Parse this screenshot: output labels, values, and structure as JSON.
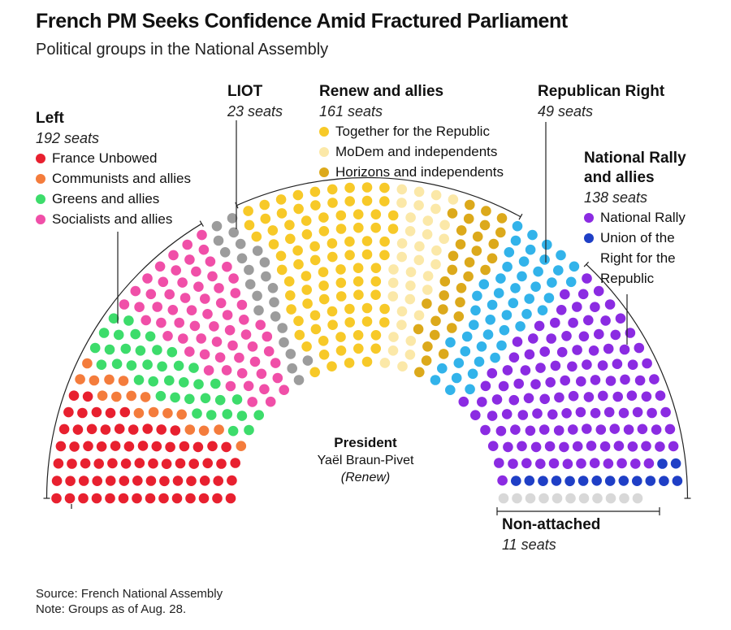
{
  "header": {
    "title": "French PM Seeks Confidence Amid Fractured Parliament",
    "subtitle": "Political groups in the National Assembly"
  },
  "chart_data": {
    "type": "parliament",
    "total_seats": 577,
    "blocs": [
      {
        "name": "Left",
        "seats_label": "192 seats",
        "seats": 192,
        "groups": [
          {
            "name": "France Unbowed",
            "seats": 71,
            "color": "#e8202f"
          },
          {
            "name": "Communists and allies",
            "seats": 17,
            "color": "#f47c3c"
          },
          {
            "name": "Greens and allies",
            "seats": 38,
            "color": "#3ddc6b"
          },
          {
            "name": "Socialists and allies",
            "seats": 66,
            "color": "#f04fa8"
          }
        ]
      },
      {
        "name": "LIOT",
        "seats_label": "23 seats",
        "seats": 23,
        "groups": [
          {
            "name": "LIOT",
            "seats": 23,
            "color": "#9c9c9c"
          }
        ]
      },
      {
        "name": "Renew and allies",
        "seats_label": "161 seats",
        "seats": 161,
        "groups": [
          {
            "name": "Together for the Republic",
            "seats": 92,
            "color": "#f7c928"
          },
          {
            "name": "MoDem and independents",
            "seats": 36,
            "color": "#fbe8a8"
          },
          {
            "name": "Horizons and independents",
            "seats": 33,
            "color": "#dca91b"
          }
        ]
      },
      {
        "name": "Republican Right",
        "seats_label": "49 seats",
        "seats": 49,
        "groups": [
          {
            "name": "Republican Right",
            "seats": 49,
            "color": "#32b3ea"
          }
        ]
      },
      {
        "name": "National Rally and allies",
        "name_lines": [
          "National Rally",
          "and allies"
        ],
        "seats_label": "138 seats",
        "seats": 138,
        "groups": [
          {
            "name": "National Rally",
            "name_lines": [
              "National Rally"
            ],
            "seats": 123,
            "color": "#8b2be2"
          },
          {
            "name": "Union of the Right for the Republic",
            "name_lines": [
              "Union of the",
              "Right for the",
              "Republic"
            ],
            "seats": 15,
            "color": "#1f3fc6"
          }
        ]
      },
      {
        "name": "Non-attached",
        "seats_label": "11 seats",
        "seats": 11,
        "groups": [
          {
            "name": "Non-attached",
            "seats": 11,
            "color": "#d8d8d8"
          }
        ]
      }
    ]
  },
  "president": {
    "title": "President",
    "name": "Yaël Braun-Pivet",
    "party": "(Renew)"
  },
  "footer": {
    "source": "Source: French National Assembly",
    "note": "Note: Groups as of Aug. 28."
  }
}
